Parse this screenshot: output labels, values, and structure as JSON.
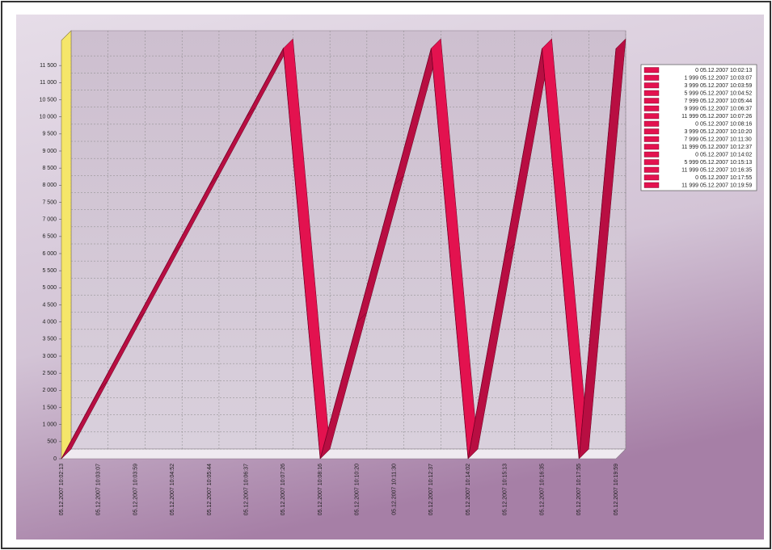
{
  "chart_data": {
    "type": "line3d",
    "categories": [
      "05.12.2007 10:02:13",
      "05.12.2007 10:03:07",
      "05.12.2007 10:03:59",
      "05.12.2007 10:04:52",
      "05.12.2007 10:05:44",
      "05.12.2007 10:06:37",
      "05.12.2007 10:07:26",
      "05.12.2007 10:08:16",
      "05.12.2007 10:10:20",
      "05.12.2007 10:11:30",
      "05.12.2007 10:12:37",
      "05.12.2007 10:14:02",
      "05.12.2007 10:15:13",
      "05.12.2007 10:16:35",
      "05.12.2007 10:17:55",
      "05.12.2007 10:19:59"
    ],
    "values": [
      0,
      1999,
      3999,
      5999,
      7999,
      9999,
      11999,
      0,
      3999,
      7999,
      11999,
      0,
      5999,
      11999,
      0,
      11999
    ],
    "value_labels": [
      "0",
      "1 999",
      "3 999",
      "5 999",
      "7 999",
      "9 999",
      "11 999",
      "0",
      "3 999",
      "7 999",
      "11 999",
      "0",
      "5 999",
      "11 999",
      "0",
      "11 999"
    ],
    "color": "#e3124f",
    "ylim": [
      0,
      12000
    ],
    "yticks": [
      0,
      500,
      {
        "value": 1000,
        "label": "1 000"
      },
      {
        "value": 1500,
        "label": "1 500"
      },
      {
        "value": 2000,
        "label": "2 000"
      },
      {
        "value": 2500,
        "label": "2 500"
      },
      {
        "value": 3000,
        "label": "3 000"
      },
      {
        "value": 3500,
        "label": "3 500"
      },
      {
        "value": 4000,
        "label": "4 000"
      },
      {
        "value": 4500,
        "label": "4 500"
      },
      {
        "value": 5000,
        "label": "5 000"
      },
      {
        "value": 5500,
        "label": "5 500"
      },
      {
        "value": 6000,
        "label": "6 000"
      },
      {
        "value": 6500,
        "label": "6 500"
      },
      {
        "value": 7000,
        "label": "7 000"
      },
      {
        "value": 7500,
        "label": "7 500"
      },
      {
        "value": 8000,
        "label": "8 000"
      },
      {
        "value": 8500,
        "label": "8 500"
      },
      {
        "value": 9000,
        "label": "9 000"
      },
      {
        "value": 9500,
        "label": "9 500"
      },
      {
        "value": 10000,
        "label": "10 000"
      },
      {
        "value": 10500,
        "label": "10 500"
      },
      {
        "value": 11000,
        "label": "11 000"
      },
      {
        "value": 11500,
        "label": "11 500"
      }
    ],
    "grid": true
  }
}
